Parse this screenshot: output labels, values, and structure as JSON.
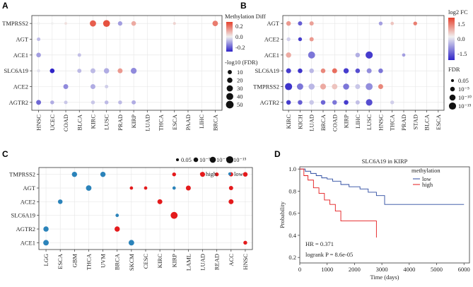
{
  "figure": {
    "colors": {
      "up": "#e5412d",
      "mid": "#f0f0f0",
      "down": "#2f24c8",
      "high": "#e41a1c",
      "low": "#2b83ba",
      "km_low": "#2b4aa0",
      "km_high": "#e41a1c"
    }
  },
  "chart_data": [
    {
      "panel": "A",
      "type": "scatter",
      "subtype": "dot-plot",
      "x_categories": [
        "HNSC",
        "UCEC",
        "COAD",
        "BLCA",
        "KIRC",
        "LUSC",
        "PRAD",
        "KIRP",
        "LUAD",
        "THCA",
        "ESCA",
        "PAAD",
        "LIHC",
        "BRCA"
      ],
      "y_categories": [
        "TMPRSS2",
        "AGT",
        "ACE1",
        "SLC6A19",
        "ACE2",
        "AGTR2"
      ],
      "legend_color": {
        "title": "Methylation Diff",
        "ticks": [
          "0.2",
          "0.0",
          "-0.2"
        ],
        "range": [
          -0.3,
          0.3
        ]
      },
      "legend_size": {
        "title": "-log10 (FDR)",
        "labels": [
          "10",
          "20",
          "30",
          "40",
          "50"
        ],
        "values": [
          10,
          20,
          30,
          40,
          50
        ]
      },
      "points": [
        {
          "x": "HNSC",
          "y": "TMPRSS2",
          "diff": 0.0,
          "fdr": 2
        },
        {
          "x": "UCEC",
          "y": "TMPRSS2",
          "diff": 0.0,
          "fdr": 2
        },
        {
          "x": "COAD",
          "y": "TMPRSS2",
          "diff": 0.03,
          "fdr": 2
        },
        {
          "x": "KIRC",
          "y": "TMPRSS2",
          "diff": 0.25,
          "fdr": 30
        },
        {
          "x": "LUSC",
          "y": "TMPRSS2",
          "diff": 0.27,
          "fdr": 38
        },
        {
          "x": "PRAD",
          "y": "TMPRSS2",
          "diff": -0.12,
          "fdr": 12
        },
        {
          "x": "KIRP",
          "y": "TMPRSS2",
          "diff": 0.12,
          "fdr": 14
        },
        {
          "x": "ESCA",
          "y": "TMPRSS2",
          "diff": 0.05,
          "fdr": 3
        },
        {
          "x": "BRCA",
          "y": "TMPRSS2",
          "diff": 0.2,
          "fdr": 22
        },
        {
          "x": "HNSC",
          "y": "AGT",
          "diff": -0.08,
          "fdr": 6
        },
        {
          "x": "HNSC",
          "y": "ACE1",
          "diff": -0.12,
          "fdr": 14
        },
        {
          "x": "BLCA",
          "y": "ACE1",
          "diff": -0.07,
          "fdr": 6
        },
        {
          "x": "HNSC",
          "y": "SLC6A19",
          "diff": -0.02,
          "fdr": 4
        },
        {
          "x": "UCEC",
          "y": "SLC6A19",
          "diff": -0.35,
          "fdr": 14
        },
        {
          "x": "BLCA",
          "y": "SLC6A19",
          "diff": -0.08,
          "fdr": 10
        },
        {
          "x": "KIRC",
          "y": "SLC6A19",
          "diff": -0.08,
          "fdr": 16
        },
        {
          "x": "LUSC",
          "y": "SLC6A19",
          "diff": -0.1,
          "fdr": 20
        },
        {
          "x": "PRAD",
          "y": "SLC6A19",
          "diff": 0.15,
          "fdr": 16
        },
        {
          "x": "KIRP",
          "y": "SLC6A19",
          "diff": -0.15,
          "fdr": 26
        },
        {
          "x": "COAD",
          "y": "ACE2",
          "diff": -0.15,
          "fdr": 16
        },
        {
          "x": "KIRC",
          "y": "ACE2",
          "diff": -0.1,
          "fdr": 16
        },
        {
          "x": "LUSC",
          "y": "ACE2",
          "diff": -0.05,
          "fdr": 6
        },
        {
          "x": "HNSC",
          "y": "AGTR2",
          "diff": -0.2,
          "fdr": 16
        },
        {
          "x": "UCEC",
          "y": "AGTR2",
          "diff": -0.1,
          "fdr": 8
        },
        {
          "x": "COAD",
          "y": "AGTR2",
          "diff": -0.06,
          "fdr": 6
        },
        {
          "x": "KIRC",
          "y": "AGTR2",
          "diff": -0.06,
          "fdr": 8
        },
        {
          "x": "LUSC",
          "y": "AGTR2",
          "diff": -0.08,
          "fdr": 8
        },
        {
          "x": "PRAD",
          "y": "AGTR2",
          "diff": -0.08,
          "fdr": 8
        },
        {
          "x": "KIRP",
          "y": "AGTR2",
          "diff": -0.1,
          "fdr": 10
        }
      ]
    },
    {
      "panel": "B",
      "type": "scatter",
      "subtype": "dot-plot",
      "x_categories": [
        "KIRC",
        "KICH",
        "LUAD",
        "BRCA",
        "COAD",
        "KIRP",
        "LIHC",
        "LUSC",
        "HNSC",
        "THCA",
        "PRAD",
        "STAD",
        "BLCA",
        "ESCA"
      ],
      "y_categories": [
        "AGT",
        "ACE2",
        "ACE1",
        "SLC6A19",
        "TMPRSS2",
        "AGTR2"
      ],
      "legend_color": {
        "title": "log2 FC",
        "ticks": [
          "1.5",
          "0.0",
          "-1.5"
        ],
        "range": [
          -2.5,
          2.0
        ]
      },
      "legend_size": {
        "title": "FDR",
        "labels": [
          "0.05",
          "10⁻⁵",
          "10⁻¹⁰",
          "10⁻¹⁵"
        ],
        "values": [
          1.3,
          5,
          10,
          15
        ]
      },
      "points": [
        {
          "x": "KIRC",
          "y": "AGT",
          "lfc": 1.0,
          "fdr": 5
        },
        {
          "x": "KICH",
          "y": "AGT",
          "lfc": -1.8,
          "fdr": 4
        },
        {
          "x": "LUAD",
          "y": "AGT",
          "lfc": 0.9,
          "fdr": 4
        },
        {
          "x": "HNSC",
          "y": "AGT",
          "lfc": -1.0,
          "fdr": 3
        },
        {
          "x": "THCA",
          "y": "AGT",
          "lfc": 0.5,
          "fdr": 2
        },
        {
          "x": "STAD",
          "y": "AGT",
          "lfc": 1.3,
          "fdr": 3
        },
        {
          "x": "KIRC",
          "y": "ACE2",
          "lfc": -0.4,
          "fdr": 3
        },
        {
          "x": "KICH",
          "y": "ACE2",
          "lfc": -2.2,
          "fdr": 3
        },
        {
          "x": "LUAD",
          "y": "ACE2",
          "lfc": 1.0,
          "fdr": 4
        },
        {
          "x": "KIRC",
          "y": "ACE1",
          "lfc": 0.8,
          "fdr": 7
        },
        {
          "x": "LUAD",
          "y": "ACE1",
          "lfc": -1.5,
          "fdr": 14
        },
        {
          "x": "LIHC",
          "y": "ACE1",
          "lfc": -0.8,
          "fdr": 5
        },
        {
          "x": "LUSC",
          "y": "ACE1",
          "lfc": -2.2,
          "fdr": 15
        },
        {
          "x": "PRAD",
          "y": "ACE1",
          "lfc": -1.0,
          "fdr": 2
        },
        {
          "x": "KIRC",
          "y": "SLC6A19",
          "lfc": -2.2,
          "fdr": 6
        },
        {
          "x": "KICH",
          "y": "SLC6A19",
          "lfc": -2.3,
          "fdr": 5
        },
        {
          "x": "LUAD",
          "y": "SLC6A19",
          "lfc": -0.7,
          "fdr": 5
        },
        {
          "x": "BRCA",
          "y": "SLC6A19",
          "lfc": 1.2,
          "fdr": 5
        },
        {
          "x": "COAD",
          "y": "SLC6A19",
          "lfc": 1.5,
          "fdr": 6
        },
        {
          "x": "KIRP",
          "y": "SLC6A19",
          "lfc": -2.2,
          "fdr": 7
        },
        {
          "x": "LIHC",
          "y": "SLC6A19",
          "lfc": -2.0,
          "fdr": 5
        },
        {
          "x": "LUSC",
          "y": "SLC6A19",
          "lfc": -1.2,
          "fdr": 6
        },
        {
          "x": "HNSC",
          "y": "SLC6A19",
          "lfc": -1.5,
          "fdr": 5
        },
        {
          "x": "KIRC",
          "y": "TMPRSS2",
          "lfc": -2.3,
          "fdr": 15
        },
        {
          "x": "KICH",
          "y": "TMPRSS2",
          "lfc": -1.5,
          "fdr": 11
        },
        {
          "x": "LUAD",
          "y": "TMPRSS2",
          "lfc": -0.7,
          "fdr": 10
        },
        {
          "x": "BRCA",
          "y": "TMPRSS2",
          "lfc": 0.8,
          "fdr": 9
        },
        {
          "x": "COAD",
          "y": "TMPRSS2",
          "lfc": 0.5,
          "fdr": 8
        },
        {
          "x": "KIRP",
          "y": "TMPRSS2",
          "lfc": -1.5,
          "fdr": 10
        },
        {
          "x": "LIHC",
          "y": "TMPRSS2",
          "lfc": -0.5,
          "fdr": 6
        },
        {
          "x": "LUSC",
          "y": "TMPRSS2",
          "lfc": -1.2,
          "fdr": 14
        },
        {
          "x": "HNSC",
          "y": "TMPRSS2",
          "lfc": 1.2,
          "fdr": 6
        },
        {
          "x": "KIRC",
          "y": "AGTR2",
          "lfc": -2.2,
          "fdr": 5
        },
        {
          "x": "KICH",
          "y": "AGTR2",
          "lfc": -1.8,
          "fdr": 5
        },
        {
          "x": "LUAD",
          "y": "AGTR2",
          "lfc": -0.5,
          "fdr": 5
        },
        {
          "x": "BRCA",
          "y": "AGTR2",
          "lfc": -1.7,
          "fdr": 5
        },
        {
          "x": "COAD",
          "y": "AGTR2",
          "lfc": -1.5,
          "fdr": 5
        },
        {
          "x": "KIRP",
          "y": "AGTR2",
          "lfc": -2.2,
          "fdr": 5
        },
        {
          "x": "LIHC",
          "y": "AGTR2",
          "lfc": -0.6,
          "fdr": 4
        },
        {
          "x": "LUSC",
          "y": "AGTR2",
          "lfc": -2.0,
          "fdr": 12
        },
        {
          "x": "THCA",
          "y": "AGTR2",
          "lfc": -0.4,
          "fdr": 3
        }
      ]
    },
    {
      "panel": "C",
      "type": "scatter",
      "subtype": "dot-plot",
      "x_categories": [
        "LGG",
        "ESCA",
        "GBM",
        "THCA",
        "UVM",
        "BRCA",
        "SKCM",
        "CESC",
        "KIRC",
        "KIRP",
        "LAML",
        "LUAD",
        "READ",
        "ACC",
        "HNSC"
      ],
      "y_categories": [
        "TMPRSS2",
        "AGT",
        "ACE2",
        "SLC6A19",
        "AGTR2",
        "ACE1"
      ],
      "legend_size": {
        "labels": [
          "0.05",
          "10⁻⁵",
          "10⁻¹⁰",
          "10⁻¹⁵"
        ],
        "values": [
          1.3,
          5,
          10,
          15
        ]
      },
      "legend_color": {
        "labels": [
          "high",
          "low"
        ]
      },
      "points": [
        {
          "x": "GBM",
          "y": "TMPRSS2",
          "group": "low",
          "fdr": 7
        },
        {
          "x": "UVM",
          "y": "TMPRSS2",
          "group": "low",
          "fdr": 7
        },
        {
          "x": "KIRP",
          "y": "TMPRSS2",
          "group": "high",
          "fdr": 3
        },
        {
          "x": "LUAD",
          "y": "TMPRSS2",
          "group": "high",
          "fdr": 6
        },
        {
          "x": "READ",
          "y": "TMPRSS2",
          "group": "high",
          "fdr": 3
        },
        {
          "x": "ACC",
          "y": "TMPRSS2",
          "group": "high",
          "fdr": 4
        },
        {
          "x": "HNSC",
          "y": "TMPRSS2",
          "group": "high",
          "fdr": 5
        },
        {
          "x": "THCA",
          "y": "AGT",
          "group": "low",
          "fdr": 8
        },
        {
          "x": "SKCM",
          "y": "AGT",
          "group": "high",
          "fdr": 2
        },
        {
          "x": "CESC",
          "y": "AGT",
          "group": "high",
          "fdr": 2
        },
        {
          "x": "KIRP",
          "y": "AGT",
          "group": "low",
          "fdr": 2
        },
        {
          "x": "LAML",
          "y": "AGT",
          "group": "high",
          "fdr": 6
        },
        {
          "x": "ACC",
          "y": "AGT",
          "group": "high",
          "fdr": 4
        },
        {
          "x": "ESCA",
          "y": "ACE2",
          "group": "low",
          "fdr": 5
        },
        {
          "x": "KIRC",
          "y": "ACE2",
          "group": "high",
          "fdr": 6
        },
        {
          "x": "ACC",
          "y": "ACE2",
          "group": "high",
          "fdr": 6
        },
        {
          "x": "BRCA",
          "y": "SLC6A19",
          "group": "low",
          "fdr": 2
        },
        {
          "x": "KIRP",
          "y": "SLC6A19",
          "group": "high",
          "fdr": 14
        },
        {
          "x": "LGG",
          "y": "AGTR2",
          "group": "low",
          "fdr": 7
        },
        {
          "x": "BRCA",
          "y": "AGTR2",
          "group": "high",
          "fdr": 7
        },
        {
          "x": "LGG",
          "y": "ACE1",
          "group": "low",
          "fdr": 8
        },
        {
          "x": "SKCM",
          "y": "ACE1",
          "group": "low",
          "fdr": 8
        },
        {
          "x": "HNSC",
          "y": "ACE1",
          "group": "high",
          "fdr": 3
        }
      ]
    },
    {
      "panel": "D",
      "type": "line",
      "subtype": "kaplan-meier",
      "title": "SLC6A19 in KIRP",
      "xlabel": "Time (days)",
      "ylabel": "Probability",
      "xlim": [
        0,
        6200
      ],
      "ylim": [
        0.15,
        1.02
      ],
      "x_ticks": [
        "0",
        "1000",
        "2000",
        "3000",
        "4000",
        "5000",
        "6000"
      ],
      "y_ticks": [
        "0.2",
        "0.4",
        "0.6",
        "0.8",
        "1.0"
      ],
      "legend_title": "methylation",
      "annotation_hr": "HR = 0.371",
      "annotation_p": "logrank P = 8.6e-05",
      "series": [
        {
          "name": "low",
          "color_key": "km_low",
          "times": [
            0,
            200,
            400,
            600,
            800,
            1000,
            1200,
            1500,
            1800,
            2200,
            2500,
            2800,
            3100,
            6000
          ],
          "values": [
            1.0,
            0.98,
            0.96,
            0.94,
            0.92,
            0.91,
            0.89,
            0.86,
            0.84,
            0.82,
            0.79,
            0.76,
            0.68,
            0.68
          ]
        },
        {
          "name": "high",
          "color_key": "km_high",
          "times": [
            0,
            150,
            300,
            500,
            700,
            900,
            1100,
            1300,
            1500,
            1700,
            2800
          ],
          "values": [
            1.0,
            0.94,
            0.9,
            0.83,
            0.78,
            0.72,
            0.68,
            0.62,
            0.53,
            0.53,
            0.38
          ]
        }
      ]
    }
  ]
}
